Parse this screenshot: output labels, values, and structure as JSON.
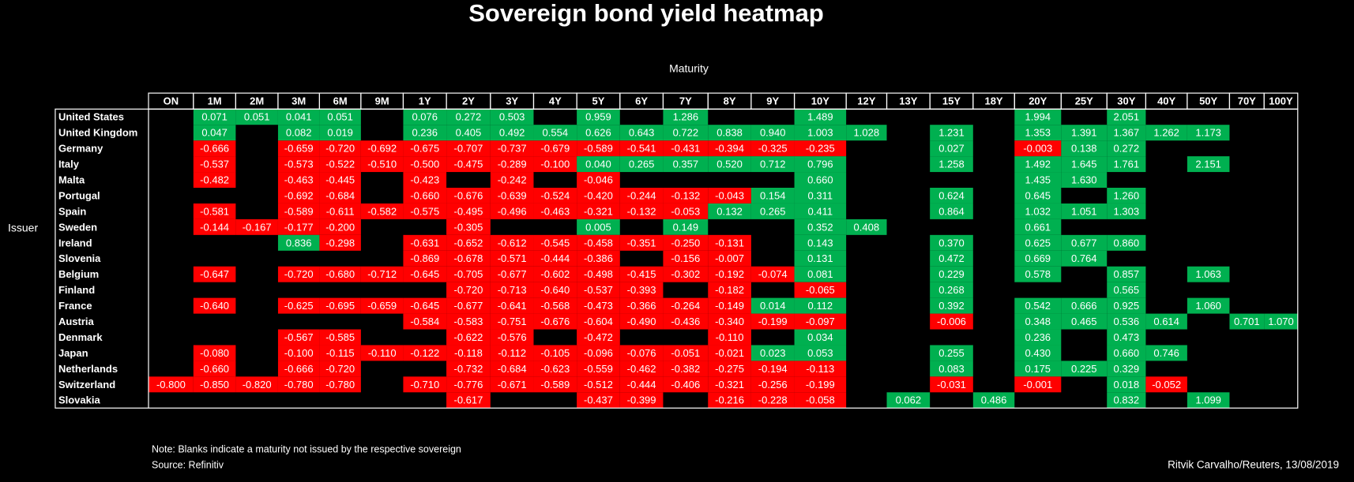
{
  "chart_data": {
    "type": "heatmap",
    "title": "Sovereign bond yield heatmap",
    "x_label": "Maturity",
    "y_label": "Issuer",
    "note": "Note: Blanks indicate a maturity not issued by the respective sovereign",
    "source": "Source: Refinitiv",
    "credit": "Ritvik Carvalho/Reuters, 13/08/2019",
    "colors": {
      "negative": "#ff0000",
      "positive": "#00b050"
    },
    "x": [
      "ON",
      "1M",
      "2M",
      "3M",
      "6M",
      "9M",
      "1Y",
      "2Y",
      "3Y",
      "4Y",
      "5Y",
      "6Y",
      "7Y",
      "8Y",
      "9Y",
      "10Y",
      "12Y",
      "13Y",
      "15Y",
      "18Y",
      "20Y",
      "25Y",
      "30Y",
      "40Y",
      "50Y",
      "70Y",
      "100Y"
    ],
    "y": [
      "United States",
      "United Kingdom",
      "Germany",
      "Italy",
      "Malta",
      "Portugal",
      "Spain",
      "Sweden",
      "Ireland",
      "Slovenia",
      "Belgium",
      "Finland",
      "France",
      "Austria",
      "Denmark",
      "Japan",
      "Netherlands",
      "Switzerland",
      "Slovakia"
    ],
    "values": [
      [
        null,
        0.071,
        0.051,
        0.041,
        0.051,
        null,
        0.076,
        0.272,
        0.503,
        null,
        0.959,
        null,
        1.286,
        null,
        null,
        1.489,
        null,
        null,
        null,
        null,
        1.994,
        null,
        2.051,
        null,
        null,
        null,
        null
      ],
      [
        null,
        0.047,
        null,
        0.082,
        0.019,
        null,
        0.236,
        0.405,
        0.492,
        0.554,
        0.626,
        0.643,
        0.722,
        0.838,
        0.94,
        1.003,
        1.028,
        null,
        1.231,
        null,
        1.353,
        1.391,
        1.367,
        1.262,
        1.173,
        null,
        null
      ],
      [
        null,
        -0.666,
        null,
        -0.659,
        -0.72,
        -0.692,
        -0.675,
        -0.707,
        -0.737,
        -0.679,
        -0.589,
        -0.541,
        -0.431,
        -0.394,
        -0.325,
        -0.235,
        null,
        null,
        0.027,
        null,
        -0.003,
        0.138,
        0.272,
        null,
        null,
        null,
        null
      ],
      [
        null,
        -0.537,
        null,
        -0.573,
        -0.522,
        -0.51,
        -0.5,
        -0.475,
        -0.289,
        -0.1,
        0.04,
        0.265,
        0.357,
        0.52,
        0.712,
        0.796,
        null,
        null,
        1.258,
        null,
        1.492,
        1.645,
        1.761,
        null,
        2.151,
        null,
        null
      ],
      [
        null,
        -0.482,
        null,
        -0.463,
        -0.445,
        null,
        -0.423,
        null,
        -0.242,
        null,
        -0.046,
        null,
        null,
        null,
        null,
        0.66,
        null,
        null,
        null,
        null,
        1.435,
        1.63,
        null,
        null,
        null,
        null,
        null
      ],
      [
        null,
        null,
        null,
        -0.692,
        -0.684,
        null,
        -0.66,
        -0.676,
        -0.639,
        -0.524,
        -0.42,
        -0.244,
        -0.132,
        -0.043,
        0.154,
        0.311,
        null,
        null,
        0.624,
        null,
        0.645,
        null,
        1.26,
        null,
        null,
        null,
        null
      ],
      [
        null,
        -0.581,
        null,
        -0.589,
        -0.611,
        -0.582,
        -0.575,
        -0.495,
        -0.496,
        -0.463,
        -0.321,
        -0.132,
        -0.053,
        0.132,
        0.265,
        0.411,
        null,
        null,
        0.864,
        null,
        1.032,
        1.051,
        1.303,
        null,
        null,
        null,
        null
      ],
      [
        null,
        -0.144,
        -0.167,
        -0.177,
        -0.2,
        null,
        null,
        -0.305,
        null,
        null,
        0.005,
        null,
        0.149,
        null,
        null,
        0.352,
        0.408,
        null,
        null,
        null,
        0.661,
        null,
        null,
        null,
        null,
        null,
        null
      ],
      [
        null,
        null,
        null,
        0.836,
        -0.298,
        null,
        -0.631,
        -0.652,
        -0.612,
        -0.545,
        -0.458,
        -0.351,
        -0.25,
        -0.131,
        null,
        0.143,
        null,
        null,
        0.37,
        null,
        0.625,
        0.677,
        0.86,
        null,
        null,
        null,
        null
      ],
      [
        null,
        null,
        null,
        null,
        null,
        null,
        -0.869,
        -0.678,
        -0.571,
        -0.444,
        -0.386,
        null,
        -0.156,
        -0.007,
        null,
        0.131,
        null,
        null,
        0.472,
        null,
        0.669,
        0.764,
        null,
        null,
        null,
        null,
        null
      ],
      [
        null,
        -0.647,
        null,
        -0.72,
        -0.68,
        -0.712,
        -0.645,
        -0.705,
        -0.677,
        -0.602,
        -0.498,
        -0.415,
        -0.302,
        -0.192,
        -0.074,
        0.081,
        null,
        null,
        0.229,
        null,
        0.578,
        null,
        0.857,
        null,
        1.063,
        null,
        null
      ],
      [
        null,
        null,
        null,
        null,
        null,
        null,
        null,
        -0.72,
        -0.713,
        -0.64,
        -0.537,
        -0.393,
        null,
        -0.182,
        null,
        -0.065,
        null,
        null,
        0.268,
        null,
        null,
        null,
        0.565,
        null,
        null,
        null,
        null
      ],
      [
        null,
        -0.64,
        null,
        -0.625,
        -0.695,
        -0.659,
        -0.645,
        -0.677,
        -0.641,
        -0.568,
        -0.473,
        -0.366,
        -0.264,
        -0.149,
        0.014,
        0.112,
        null,
        null,
        0.392,
        null,
        0.542,
        0.666,
        0.925,
        null,
        1.06,
        null,
        null
      ],
      [
        null,
        null,
        null,
        null,
        null,
        null,
        -0.584,
        -0.583,
        -0.751,
        -0.676,
        -0.604,
        -0.49,
        -0.436,
        -0.34,
        -0.199,
        -0.097,
        null,
        null,
        -0.006,
        null,
        0.348,
        0.465,
        0.536,
        0.614,
        null,
        0.701,
        1.07
      ],
      [
        null,
        null,
        null,
        -0.567,
        -0.585,
        null,
        null,
        -0.622,
        -0.576,
        null,
        -0.472,
        null,
        null,
        -0.11,
        null,
        0.034,
        null,
        null,
        null,
        null,
        0.236,
        null,
        0.473,
        null,
        null,
        null,
        null
      ],
      [
        null,
        -0.08,
        null,
        -0.1,
        -0.115,
        -0.11,
        -0.122,
        -0.118,
        -0.112,
        -0.105,
        -0.096,
        -0.076,
        -0.051,
        -0.021,
        0.023,
        0.053,
        null,
        null,
        0.255,
        null,
        0.43,
        null,
        0.66,
        0.746,
        null,
        null,
        null
      ],
      [
        null,
        -0.66,
        null,
        -0.666,
        -0.72,
        null,
        null,
        -0.732,
        -0.684,
        -0.623,
        -0.559,
        -0.462,
        -0.382,
        -0.275,
        -0.194,
        -0.113,
        null,
        null,
        0.083,
        null,
        0.175,
        0.225,
        0.329,
        null,
        null,
        null,
        null
      ],
      [
        -0.8,
        -0.85,
        -0.82,
        -0.78,
        -0.78,
        null,
        -0.71,
        -0.776,
        -0.671,
        -0.589,
        -0.512,
        -0.444,
        -0.406,
        -0.321,
        -0.256,
        -0.199,
        null,
        null,
        -0.031,
        null,
        -0.001,
        null,
        0.018,
        -0.052,
        null,
        null,
        null
      ],
      [
        null,
        null,
        null,
        null,
        null,
        null,
        null,
        -0.617,
        null,
        null,
        -0.437,
        -0.399,
        null,
        -0.216,
        -0.228,
        -0.058,
        null,
        0.062,
        null,
        0.486,
        null,
        null,
        0.832,
        null,
        1.099,
        null,
        null
      ]
    ],
    "value_labels": [
      [
        null,
        "0.071",
        "0.051",
        "0.041",
        "0.051",
        null,
        "0.076",
        "0.272",
        "0.503",
        null,
        "0.959",
        null,
        "1.286",
        null,
        null,
        "1.489",
        null,
        null,
        null,
        null,
        "1.994",
        null,
        "2.051",
        null,
        null,
        null,
        null
      ],
      [
        null,
        "0.047",
        null,
        "0.082",
        "0.019",
        null,
        "0.236",
        "0.405",
        "0.492",
        "0.554",
        "0.626",
        "0.643",
        "0.722",
        "0.838",
        "0.940",
        "1.003",
        "1.028",
        null,
        "1.231",
        null,
        "1.353",
        "1.391",
        "1.367",
        "1.262",
        "1.173",
        null,
        null
      ],
      [
        null,
        "-0.666",
        null,
        "-0.659",
        "-0.720",
        "-0.692",
        "-0.675",
        "-0.707",
        "-0.737",
        "-0.679",
        "-0.589",
        "-0.541",
        "-0.431",
        "-0.394",
        "-0.325",
        "-0.235",
        null,
        null,
        "0.027",
        null,
        "-0.003",
        "0.138",
        "0.272",
        null,
        null,
        null,
        null
      ],
      [
        null,
        "-0.537",
        null,
        "-0.573",
        "-0.522",
        "-0.510",
        "-0.500",
        "-0.475",
        "-0.289",
        "-0.100",
        "0.040",
        "0.265",
        "0.357",
        "0.520",
        "0.712",
        "0.796",
        null,
        null,
        "1.258",
        null,
        "1.492",
        "1.645",
        "1.761",
        null,
        "2.151",
        null,
        null
      ],
      [
        null,
        "-0.482",
        null,
        "-0.463",
        "-0.445",
        null,
        "-0.423",
        null,
        "-0.242",
        null,
        "-0.046",
        null,
        null,
        null,
        null,
        "0.660",
        null,
        null,
        null,
        null,
        "1.435",
        "1.630",
        null,
        null,
        null,
        null,
        null
      ],
      [
        null,
        null,
        null,
        "-0.692",
        "-0.684",
        null,
        "-0.660",
        "-0.676",
        "-0.639",
        "-0.524",
        "-0.420",
        "-0.244",
        "-0.132",
        "-0.043",
        "0.154",
        "0.311",
        null,
        null,
        "0.624",
        null,
        "0.645",
        null,
        "1.260",
        null,
        null,
        null,
        null
      ],
      [
        null,
        "-0.581",
        null,
        "-0.589",
        "-0.611",
        "-0.582",
        "-0.575",
        "-0.495",
        "-0.496",
        "-0.463",
        "-0.321",
        "-0.132",
        "-0.053",
        "0.132",
        "0.265",
        "0.411",
        null,
        null,
        "0.864",
        null,
        "1.032",
        "1.051",
        "1.303",
        null,
        null,
        null,
        null
      ],
      [
        null,
        "-0.144",
        "-0.167",
        "-0.177",
        "-0.200",
        null,
        null,
        "-0.305",
        null,
        null,
        "0.005",
        null,
        "0.149",
        null,
        null,
        "0.352",
        "0.408",
        null,
        null,
        null,
        "0.661",
        null,
        null,
        null,
        null,
        null,
        null
      ],
      [
        null,
        null,
        null,
        "0.836",
        "-0.298",
        null,
        "-0.631",
        "-0.652",
        "-0.612",
        "-0.545",
        "-0.458",
        "-0.351",
        "-0.250",
        "-0.131",
        null,
        "0.143",
        null,
        null,
        "0.370",
        null,
        "0.625",
        "0.677",
        "0.860",
        null,
        null,
        null,
        null
      ],
      [
        null,
        null,
        null,
        null,
        null,
        null,
        "-0.869",
        "-0.678",
        "-0.571",
        "-0.444",
        "-0.386",
        null,
        "-0.156",
        "-0.007",
        null,
        "0.131",
        null,
        null,
        "0.472",
        null,
        "0.669",
        "0.764",
        null,
        null,
        null,
        null,
        null
      ],
      [
        null,
        "-0.647",
        null,
        "-0.720",
        "-0.680",
        "-0.712",
        "-0.645",
        "-0.705",
        "-0.677",
        "-0.602",
        "-0.498",
        "-0.415",
        "-0.302",
        "-0.192",
        "-0.074",
        "0.081",
        null,
        null,
        "0.229",
        null,
        "0.578",
        null,
        "0.857",
        null,
        "1.063",
        null,
        null
      ],
      [
        null,
        null,
        null,
        null,
        null,
        null,
        null,
        "-0.720",
        "-0.713",
        "-0.640",
        "-0.537",
        "-0.393",
        null,
        "-0.182",
        null,
        "-0.065",
        null,
        null,
        "0.268",
        null,
        null,
        null,
        "0.565",
        null,
        null,
        null,
        null
      ],
      [
        null,
        "-0.640",
        null,
        "-0.625",
        "-0.695",
        "-0.659",
        "-0.645",
        "-0.677",
        "-0.641",
        "-0.568",
        "-0.473",
        "-0.366",
        "-0.264",
        "-0.149",
        "0.014",
        "0.112",
        null,
        null,
        "0.392",
        null,
        "0.542",
        "0.666",
        "0.925",
        null,
        "1.060",
        null,
        null
      ],
      [
        null,
        null,
        null,
        null,
        null,
        null,
        "-0.584",
        "-0.583",
        "-0.751",
        "-0.676",
        "-0.604",
        "-0.490",
        "-0.436",
        "-0.340",
        "-0.199",
        "-0.097",
        null,
        null,
        "-0.006",
        null,
        "0.348",
        "0.465",
        "0.536",
        "0.614",
        null,
        "0.701",
        "1.070"
      ],
      [
        null,
        null,
        null,
        "-0.567",
        "-0.585",
        null,
        null,
        "-0.622",
        "-0.576",
        null,
        "-0.472",
        null,
        null,
        "-0.110",
        null,
        "0.034",
        null,
        null,
        null,
        null,
        "0.236",
        null,
        "0.473",
        null,
        null,
        null,
        null
      ],
      [
        null,
        "-0.080",
        null,
        "-0.100",
        "-0.115",
        "-0.110",
        "-0.122",
        "-0.118",
        "-0.112",
        "-0.105",
        "-0.096",
        "-0.076",
        "-0.051",
        "-0.021",
        "0.023",
        "0.053",
        null,
        null,
        "0.255",
        null,
        "0.430",
        null,
        "0.660",
        "0.746",
        null,
        null,
        null
      ],
      [
        null,
        "-0.660",
        null,
        "-0.666",
        "-0.720",
        null,
        null,
        "-0.732",
        "-0.684",
        "-0.623",
        "-0.559",
        "-0.462",
        "-0.382",
        "-0.275",
        "-0.194",
        "-0.113",
        null,
        null,
        "0.083",
        null,
        "0.175",
        "0.225",
        "0.329",
        null,
        null,
        null,
        null
      ],
      [
        "-0.800",
        "-0.850",
        "-0.820",
        "-0.780",
        "-0.780",
        null,
        "-0.710",
        "-0.776",
        "-0.671",
        "-0.589",
        "-0.512",
        "-0.444",
        "-0.406",
        "-0.321",
        "-0.256",
        "-0.199",
        null,
        null,
        "-0.031",
        null,
        "-0.001",
        null,
        "0.018",
        "-0.052",
        null,
        null,
        null
      ],
      [
        null,
        null,
        null,
        null,
        null,
        null,
        null,
        "-0.617",
        null,
        null,
        "-0.437",
        "-0.399",
        null,
        "-0.216",
        "-0.228",
        "-0.058",
        null,
        "0.062",
        null,
        "0.486",
        null,
        null,
        "0.832",
        null,
        "1.099",
        null,
        null
      ]
    ]
  }
}
